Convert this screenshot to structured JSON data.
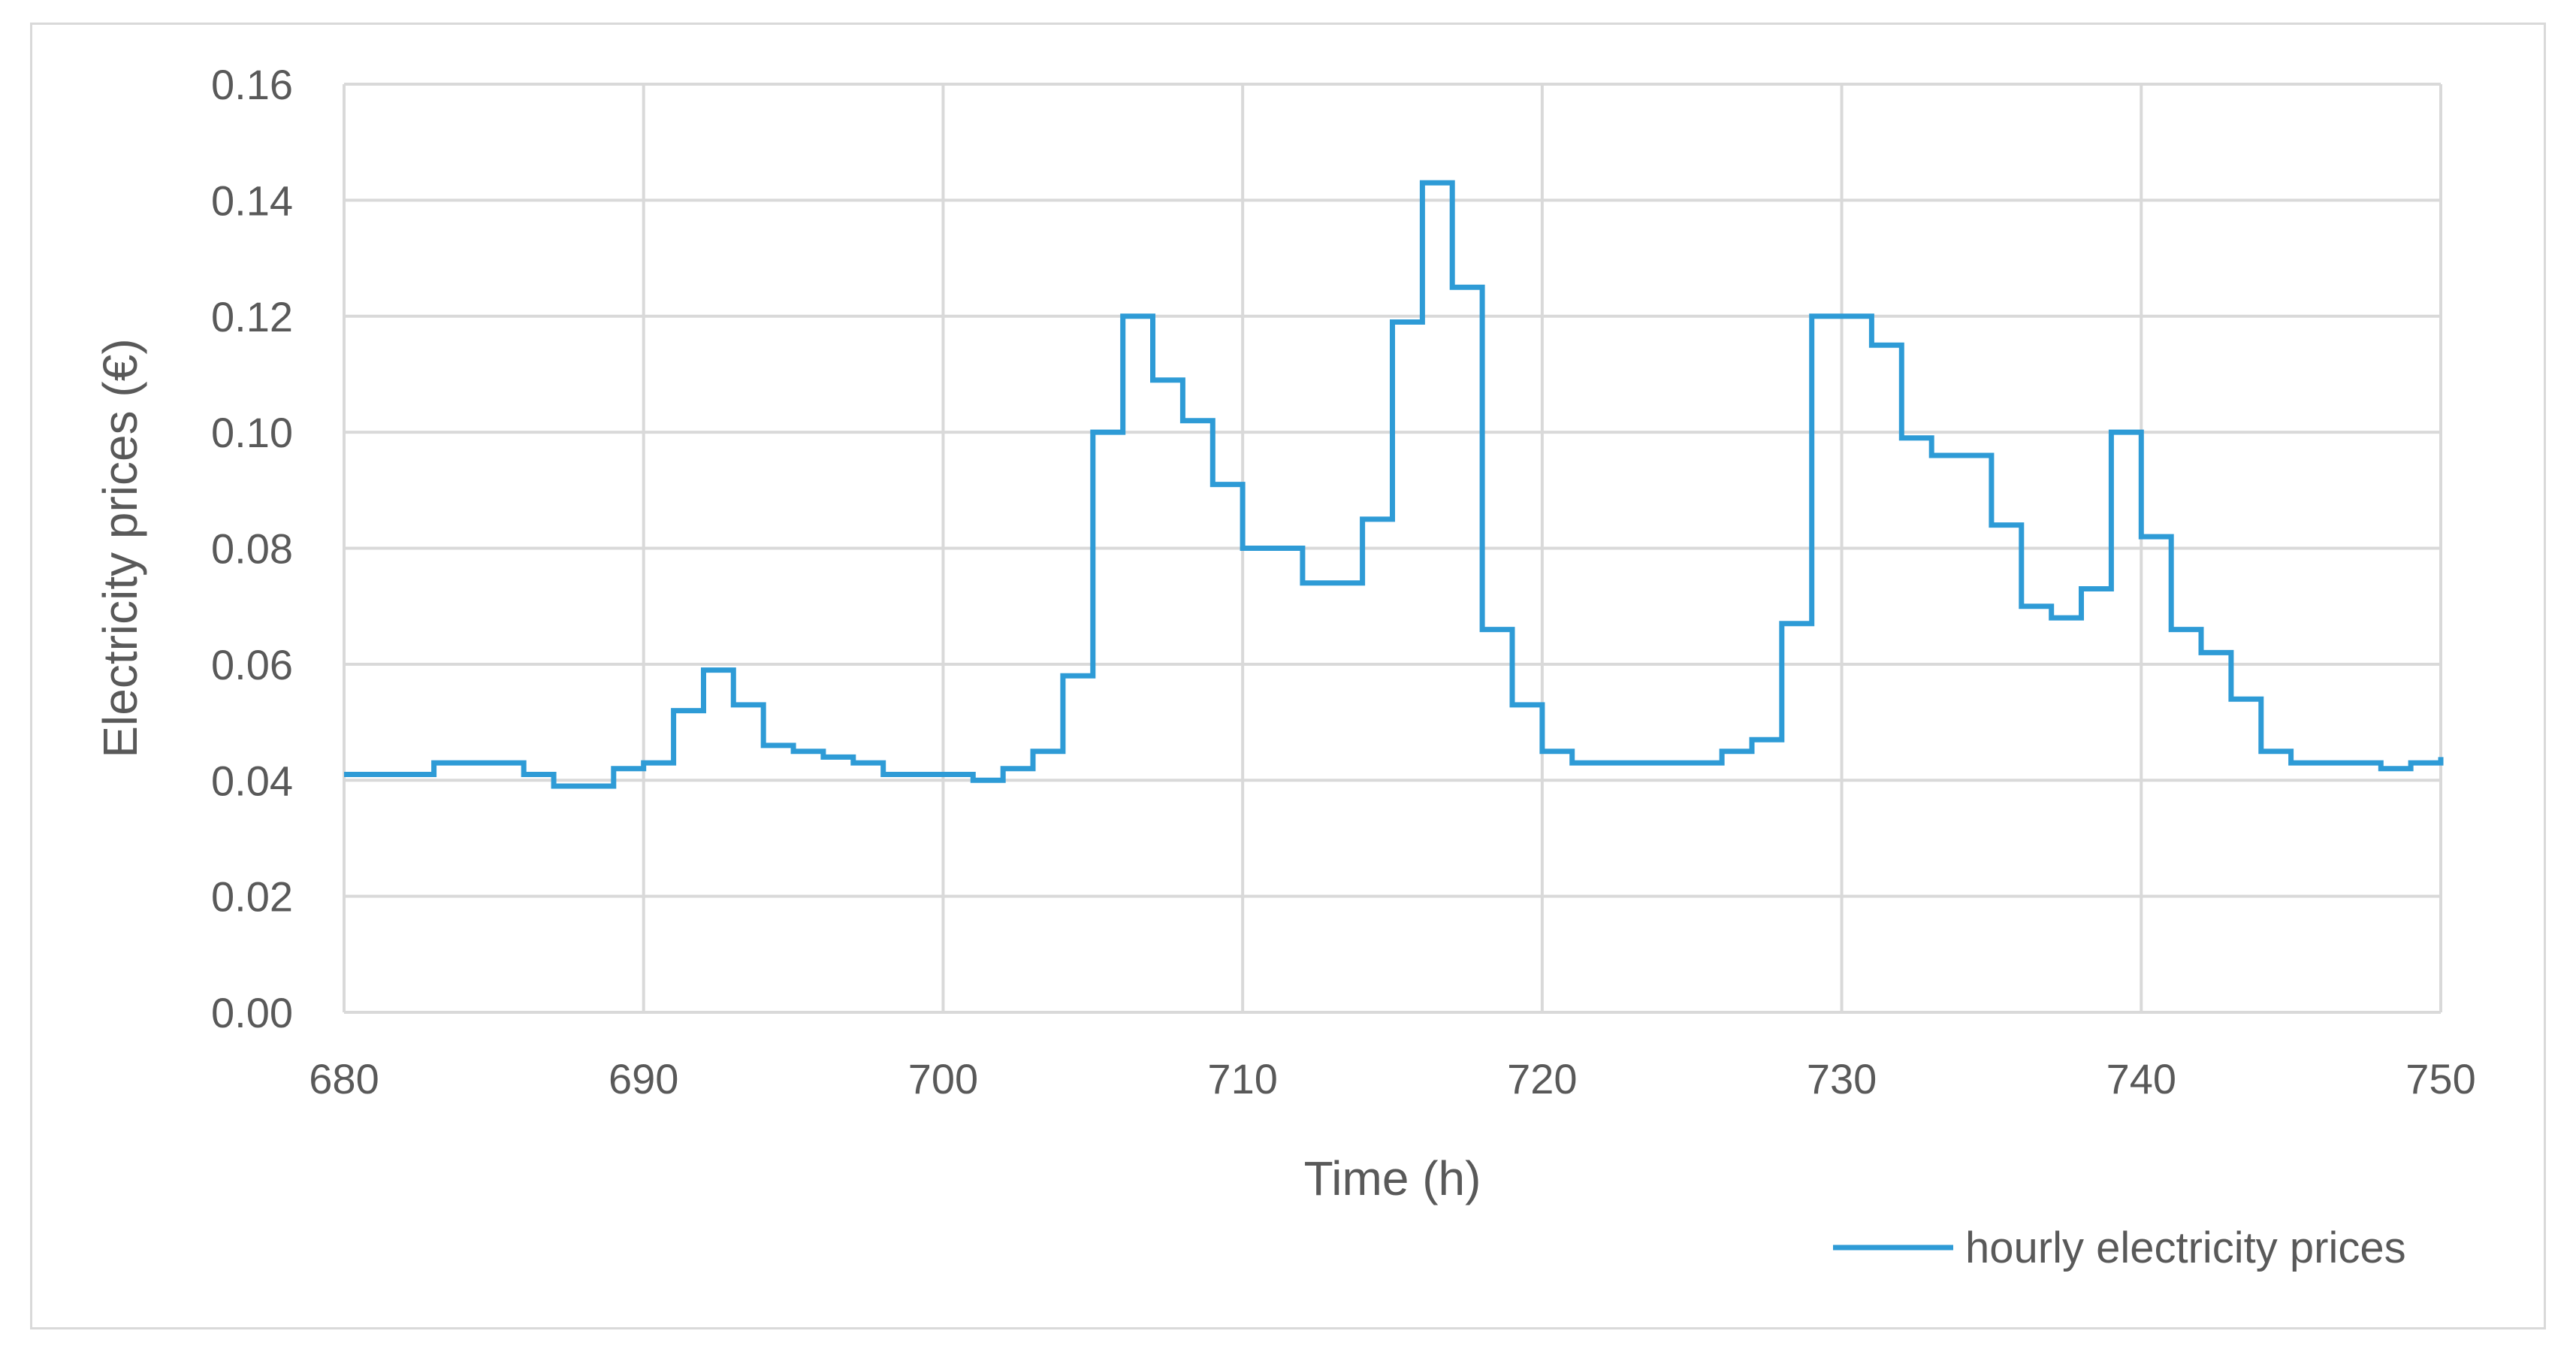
{
  "chart_data": {
    "type": "line",
    "title": "",
    "xlabel": "Time (h)",
    "ylabel": "Electricity prices (€)",
    "xlim": [
      680,
      750
    ],
    "ylim": [
      0,
      0.16
    ],
    "x_ticks": [
      "680",
      "690",
      "700",
      "710",
      "720",
      "730",
      "740",
      "750"
    ],
    "y_ticks": [
      "0.00",
      "0.02",
      "0.04",
      "0.06",
      "0.08",
      "0.10",
      "0.12",
      "0.14",
      "0.16"
    ],
    "grid": true,
    "legend_position": "bottom-right",
    "line_style": "step",
    "series": [
      {
        "name": "hourly electricity prices",
        "color": "#2e9bd6",
        "x": [
          680,
          681,
          682,
          683,
          684,
          685,
          686,
          687,
          688,
          689,
          690,
          691,
          692,
          693,
          694,
          695,
          696,
          697,
          698,
          699,
          700,
          701,
          702,
          703,
          704,
          705,
          706,
          707,
          708,
          709,
          710,
          711,
          712,
          713,
          714,
          715,
          716,
          717,
          718,
          719,
          720,
          721,
          722,
          723,
          724,
          725,
          726,
          727,
          728,
          729,
          730,
          731,
          732,
          733,
          734,
          735,
          736,
          737,
          738,
          739,
          740,
          741,
          742,
          743,
          744,
          745,
          746,
          747,
          748,
          749
        ],
        "values": [
          0.041,
          0.041,
          0.041,
          0.043,
          0.043,
          0.043,
          0.041,
          0.039,
          0.039,
          0.042,
          0.043,
          0.052,
          0.059,
          0.053,
          0.046,
          0.045,
          0.044,
          0.043,
          0.041,
          0.041,
          0.041,
          0.04,
          0.042,
          0.045,
          0.058,
          0.1,
          0.12,
          0.109,
          0.102,
          0.091,
          0.08,
          0.08,
          0.074,
          0.074,
          0.085,
          0.119,
          0.143,
          0.125,
          0.066,
          0.053,
          0.045,
          0.043,
          0.043,
          0.043,
          0.043,
          0.043,
          0.045,
          0.047,
          0.067,
          0.12,
          0.12,
          0.115,
          0.099,
          0.096,
          0.096,
          0.084,
          0.07,
          0.068,
          0.073,
          0.1,
          0.082,
          0.066,
          0.062,
          0.054,
          0.045,
          0.043,
          0.043,
          0.043,
          0.042,
          0.043
        ],
        "end_value": 0.044
      }
    ]
  }
}
